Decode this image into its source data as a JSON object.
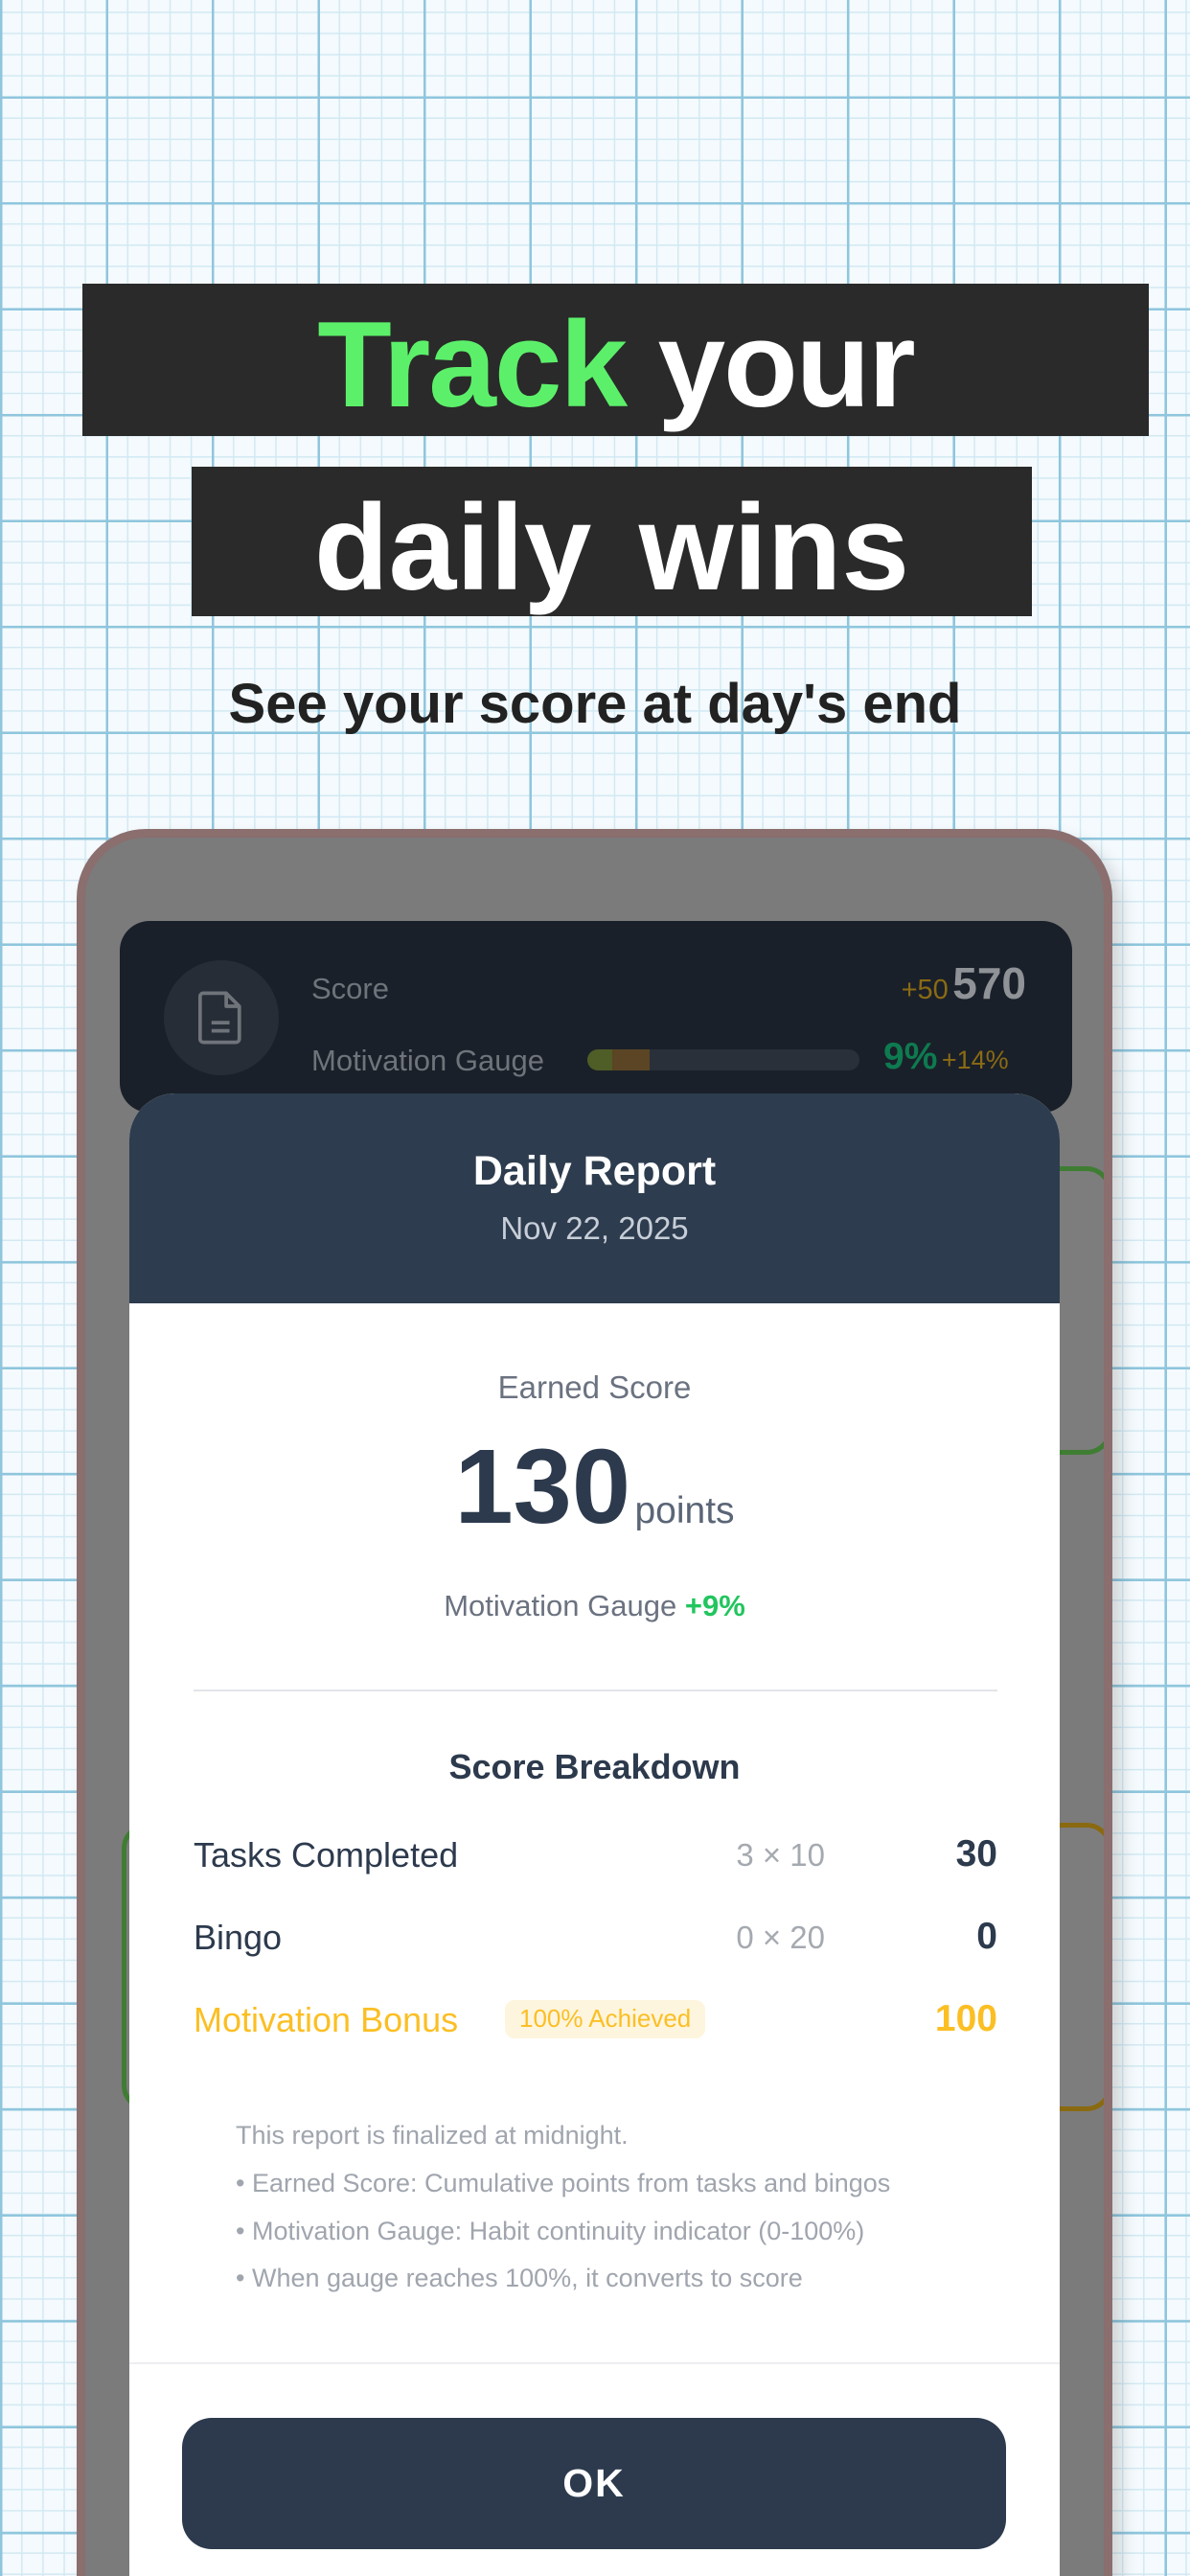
{
  "headline": {
    "line1_accent": "Track",
    "line1_rest": "your",
    "line2": "daily wins",
    "subtitle": "See your score at day's end"
  },
  "status_card": {
    "icon": "document-icon",
    "score_label": "Score",
    "score_delta": "+50",
    "score_value": "570",
    "gauge_label": "Motivation Gauge",
    "gauge_percent": "9%",
    "gauge_delta": "+14%",
    "gauge_fill": 0.09,
    "gauge_delta_fill": 0.14
  },
  "report": {
    "title": "Daily Report",
    "date": "Nov 22, 2025",
    "earned_label": "Earned Score",
    "earned_value": "130",
    "earned_unit": "points",
    "gauge_label": "Motivation Gauge",
    "gauge_change": "+9%",
    "breakdown_title": "Score Breakdown",
    "rows": [
      {
        "label": "Tasks Completed",
        "formula": "3 × 10",
        "value": "30"
      },
      {
        "label": "Bingo",
        "formula": "0 × 20",
        "value": "0"
      },
      {
        "label": "Motivation Bonus",
        "badge": "100% Achieved",
        "value": "100"
      }
    ],
    "notes": [
      "This report is finalized at midnight.",
      "• Earned Score: Cumulative points from tasks and bingos",
      "• Motivation Gauge: Habit continuity indicator (0-100%)",
      "• When gauge reaches 100%, it converts to score"
    ],
    "ok_label": "OK"
  },
  "colors": {
    "accent_green": "#5cf06a",
    "navy": "#2d3a4d",
    "gold": "#fbbf24",
    "positive": "#22c55e"
  }
}
